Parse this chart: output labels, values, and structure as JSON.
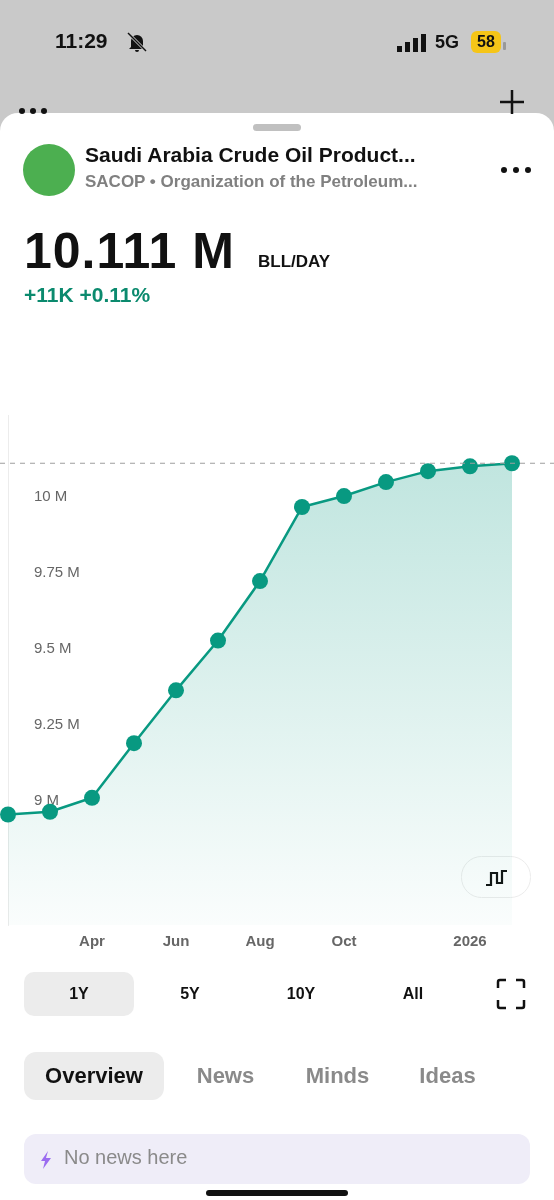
{
  "chart_data": {
    "type": "area",
    "title": "Saudi Arabia Crude Oil Product...",
    "subtitle": "SACOP • Organization of the Petroleum...",
    "categories": [
      null,
      null,
      "Apr",
      null,
      "Jun",
      null,
      "Aug",
      null,
      "Oct",
      null,
      null,
      "2026",
      null
    ],
    "series": [
      {
        "color": "#089981",
        "values": [
          8.954,
          8.963,
          9.009,
          9.189,
          9.363,
          9.527,
          9.723,
          9.967,
          10.003,
          10.049,
          10.085,
          10.101,
          10.111
        ]
      }
    ],
    "ylim": [
      8.59,
      10.27
    ],
    "yticks": [
      {
        "value": 9,
        "label": "9 M"
      },
      {
        "value": 9.25,
        "label": "9.25 M"
      },
      {
        "value": 9.5,
        "label": "9.5 M"
      },
      {
        "value": 9.75,
        "label": "9.75 M"
      },
      {
        "value": 10,
        "label": "10 M"
      }
    ],
    "ref_lines": [
      {
        "axis": "y",
        "value": 10.111,
        "color": "#9e9e9e",
        "line_style": "dashed"
      }
    ],
    "marker": "circle",
    "annotations": [
      "10.111 M",
      "BLL/DAY",
      "+11K +0.11%",
      "11:29",
      "5G",
      "58",
      "1Y",
      "5Y",
      "10Y",
      "All",
      "Overview",
      "News",
      "Minds",
      "Ideas",
      "No news here"
    ]
  }
}
